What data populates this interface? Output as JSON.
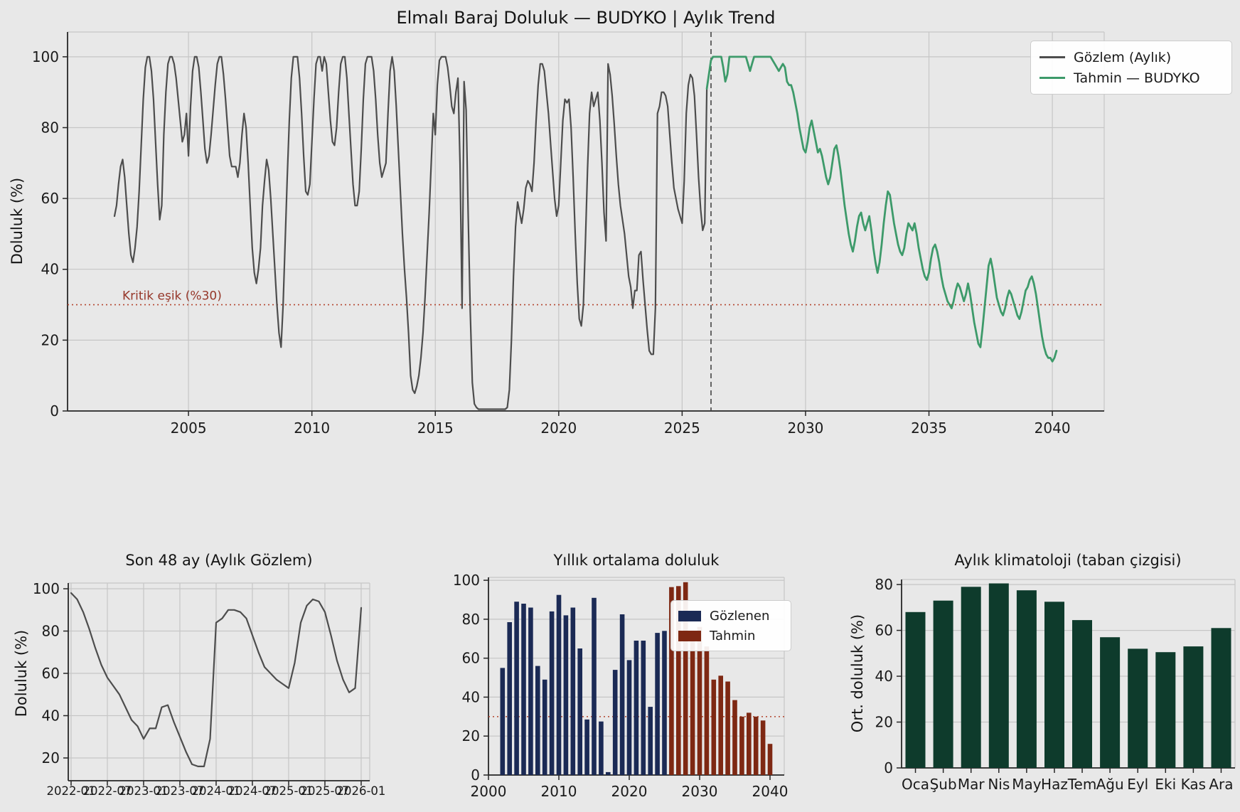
{
  "figure": {
    "title": "Elmalı Baraj Doluluk — BUDYKO | Aylık Trend",
    "background": "#e8e8e8"
  },
  "colors": {
    "observed_line": "#4d4d4d",
    "forecast_line": "#3d9a6a",
    "threshold_line": "#b4452e",
    "threshold_text": "#96372a",
    "bar_observed": "#1b2a55",
    "bar_forecast": "#7e2813",
    "bar_climatology": "#0e3b2c",
    "grid": "#c6c6c6",
    "spine": "#262626",
    "vline": "#444444"
  },
  "chart_data": [
    {
      "type": "line",
      "title": "Elmalı Baraj Doluluk — BUDYKO | Aylık Trend",
      "ylabel": "Doluluk (%)",
      "xticks": [
        2005,
        2010,
        2015,
        2020,
        2025,
        2030,
        2035,
        2040
      ],
      "yticks": [
        0,
        20,
        40,
        60,
        80,
        100
      ],
      "xlim": [
        2000.1,
        2042.1
      ],
      "ylim": [
        0,
        107
      ],
      "grid": "both",
      "threshold": {
        "value": 30,
        "label": "Kritik eşik (%30)"
      },
      "forecast_start_x": 2026.17,
      "legend": [
        {
          "label": "Gözlem (Aylık)",
          "color": "#4d4d4d"
        },
        {
          "label": "Tahmin — BUDYKO",
          "color": "#3d9a6a"
        }
      ],
      "series": [
        {
          "name": "Gözlem (Aylık)",
          "color": "#4d4d4d",
          "x_start": 2002.0,
          "x_step_months": 1,
          "values": [
            55,
            58,
            64,
            69,
            71,
            66,
            58,
            50,
            44,
            42,
            46,
            52,
            62,
            75,
            88,
            97,
            100,
            100,
            96,
            88,
            76,
            64,
            54,
            58,
            78,
            90,
            98,
            100,
            100,
            98,
            94,
            88,
            82,
            76,
            78,
            84,
            72,
            86,
            96,
            100,
            100,
            97,
            90,
            82,
            74,
            70,
            72,
            78,
            85,
            92,
            98,
            100,
            100,
            95,
            88,
            80,
            72,
            69,
            69,
            69,
            66,
            70,
            78,
            84,
            80,
            70,
            58,
            46,
            39,
            36,
            40,
            46,
            58,
            65,
            71,
            68,
            60,
            50,
            40,
            30,
            22,
            18,
            30,
            48,
            66,
            82,
            94,
            100,
            100,
            100,
            94,
            84,
            72,
            62,
            61,
            64,
            76,
            88,
            98,
            100,
            100,
            96,
            100,
            98,
            90,
            82,
            76,
            75,
            80,
            90,
            98,
            100,
            100,
            94,
            84,
            74,
            64,
            58,
            58,
            62,
            74,
            88,
            98,
            100,
            100,
            100,
            96,
            88,
            78,
            70,
            66,
            68,
            70,
            84,
            96,
            100,
            96,
            86,
            74,
            62,
            50,
            40,
            32,
            22,
            10,
            6,
            5,
            7,
            10,
            15,
            22,
            32,
            44,
            56,
            70,
            84,
            78,
            92,
            99,
            100,
            100,
            100,
            97,
            92,
            86,
            84,
            90,
            94,
            70,
            29,
            93,
            85,
            55,
            28,
            8,
            2,
            1,
            0.5,
            0.5,
            0.5,
            0.5,
            0.5,
            0.5,
            0.5,
            0.5,
            0.5,
            0.5,
            0.5,
            0.5,
            0.5,
            0.5,
            1,
            6,
            20,
            38,
            52,
            59,
            56,
            53,
            57,
            63,
            65,
            64,
            62,
            70,
            82,
            92,
            98,
            98,
            96,
            90,
            84,
            76,
            68,
            60,
            55,
            58,
            70,
            82,
            88,
            87,
            88,
            80,
            66,
            50,
            36,
            26,
            24,
            30,
            48,
            68,
            84,
            90,
            86,
            88,
            90,
            82,
            70,
            56,
            48,
            98,
            95,
            89,
            81,
            72,
            64,
            58,
            54,
            50,
            44,
            38,
            35,
            29,
            34,
            34,
            44,
            45,
            37,
            30,
            23,
            17,
            16,
            16,
            29,
            84,
            86,
            90,
            90,
            89,
            86,
            78,
            70,
            63,
            60,
            57,
            55,
            53,
            65,
            84,
            92,
            95,
            94,
            89,
            78,
            66,
            57,
            51,
            53,
            91
          ]
        },
        {
          "name": "Tahmin — BUDYKO",
          "color": "#3d9a6a",
          "x_start": 2026.0,
          "x_step_months": 1,
          "values": [
            91,
            95,
            99,
            100,
            100,
            100,
            100,
            100,
            97,
            93,
            95,
            100,
            100,
            100,
            100,
            100,
            100,
            100,
            100,
            100,
            98,
            96,
            98,
            100,
            100,
            100,
            100,
            100,
            100,
            100,
            100,
            100,
            99,
            98,
            97,
            96,
            97,
            98,
            97,
            93,
            92,
            92,
            90,
            87,
            84,
            80,
            77,
            74,
            73,
            76,
            80,
            82,
            79,
            76,
            73,
            74,
            72,
            69,
            66,
            64,
            66,
            70,
            74,
            75,
            72,
            68,
            63,
            58,
            54,
            50,
            47,
            45,
            48,
            52,
            55,
            56,
            53,
            51,
            53,
            55,
            51,
            46,
            42,
            39,
            42,
            47,
            53,
            58,
            62,
            61,
            57,
            53,
            50,
            47,
            45,
            44,
            46,
            50,
            53,
            52,
            51,
            53,
            50,
            46,
            43,
            40,
            38,
            37,
            39,
            43,
            46,
            47,
            45,
            42,
            38,
            35,
            33,
            31,
            30,
            29,
            31,
            34,
            36,
            35,
            33,
            31,
            33,
            36,
            33,
            29,
            25,
            22,
            19,
            18,
            23,
            29,
            35,
            41,
            43,
            40,
            36,
            32,
            30,
            28,
            27,
            29,
            32,
            34,
            33,
            31,
            29,
            27,
            26,
            28,
            31,
            34,
            35,
            37,
            38,
            36,
            33,
            29,
            25,
            21,
            18,
            16,
            15,
            15,
            14,
            15,
            17
          ]
        }
      ]
    },
    {
      "type": "line",
      "title": "Son 48 ay (Aylık Gözlem)",
      "ylabel": "Doluluk (%)",
      "yticks": [
        20,
        40,
        60,
        80,
        100
      ],
      "xtick_values": [
        2022,
        2022.5,
        2023,
        2023.5,
        2024,
        2024.5,
        2025,
        2025.5,
        2026
      ],
      "xtick_labels": [
        "2022-01",
        "2022-07",
        "2023-01",
        "2023-07",
        "2024-01",
        "2024-07",
        "2025-01",
        "2025-07",
        "2026-01"
      ],
      "grid": "both",
      "series": [
        {
          "name": "Gözlem",
          "color": "#4d4d4d",
          "x_start": 2022.0,
          "x_step_months": 1,
          "values": [
            98,
            95,
            89,
            81,
            72,
            64,
            58,
            54,
            50,
            44,
            38,
            35,
            29,
            34,
            34,
            44,
            45,
            37,
            30,
            23,
            17,
            16,
            16,
            29,
            84,
            86,
            90,
            90,
            89,
            86,
            78,
            70,
            63,
            60,
            57,
            55,
            53,
            65,
            84,
            92,
            95,
            94,
            89,
            78,
            66,
            57,
            51,
            53,
            91
          ]
        }
      ]
    },
    {
      "type": "bar",
      "title": "Yıllık ortalama doluluk",
      "xticks": [
        2000,
        2010,
        2020,
        2030,
        2040
      ],
      "yticks": [
        0,
        20,
        40,
        60,
        80,
        100
      ],
      "grid": "horizontal",
      "threshold": {
        "value": 30
      },
      "legend": [
        {
          "label": "Gözlenen",
          "color": "#1b2a55"
        },
        {
          "label": "Tahmin",
          "color": "#7e2813"
        }
      ],
      "series": [
        {
          "name": "Gözlenen",
          "color": "#1b2a55",
          "start_year": 2002,
          "values": [
            55,
            78.5,
            89,
            88,
            86,
            56,
            49,
            84,
            92.5,
            82,
            86,
            65,
            28.5,
            91,
            27.5,
            1.5,
            54,
            82.5,
            59,
            69,
            69,
            35,
            73,
            74
          ]
        },
        {
          "name": "Tahmin",
          "color": "#7e2813",
          "start_year": 2026,
          "values": [
            96.5,
            97,
            99,
            74,
            76,
            66,
            49,
            51,
            48,
            38.5,
            30,
            32,
            30,
            28,
            16
          ]
        }
      ]
    },
    {
      "type": "bar",
      "title": "Aylık klimatoloji (taban çizgisi)",
      "ylabel": "Ort. doluluk (%)",
      "yticks": [
        0,
        20,
        40,
        60,
        80
      ],
      "grid": "horizontal",
      "categories": [
        "Oca",
        "Şub",
        "Mar",
        "Nis",
        "May",
        "Haz",
        "Tem",
        "Ağu",
        "Eyl",
        "Eki",
        "Kas",
        "Ara"
      ],
      "values": [
        68,
        73,
        79,
        80.5,
        77.5,
        72.5,
        64.5,
        57,
        52,
        50.5,
        53,
        61
      ],
      "color": "#0e3b2c"
    }
  ]
}
